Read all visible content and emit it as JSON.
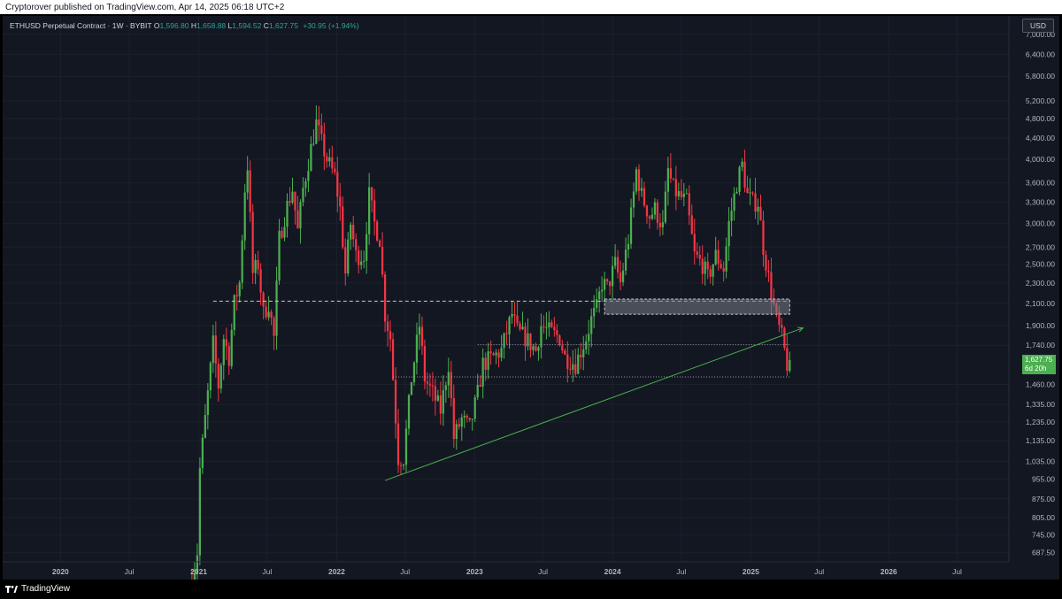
{
  "publish_line": "Cryptorover published on TradingView.com, Apr 14, 2025 06:18 UTC+2",
  "legend": {
    "symbol": "ETHUSD Perpetual Contract · 1W · BYBIT",
    "open_label": "O",
    "open": "1,596.80",
    "high_label": "H",
    "high": "1,658.88",
    "low_label": "L",
    "low": "1,594.52",
    "close_label": "C",
    "close": "1,627.75",
    "change": "+30.95 (+1.94%)"
  },
  "currency_button": "USD",
  "last_price": {
    "price": "1,627.75",
    "countdown": "6d 20h"
  },
  "footer": {
    "brand": "TradingView"
  },
  "colors": {
    "up": "#4caf50",
    "down": "#f23645",
    "background": "#131722",
    "grid": "#1c202b",
    "axis_text": "#b2b5be",
    "trendline": "#4caf50",
    "zone": "#787b86"
  },
  "chart_data": {
    "type": "candlestick",
    "symbol": "ETHUSD",
    "interval": "1W",
    "y_scale": "log",
    "y_ticks": [
      687.5,
      745,
      805,
      875,
      955,
      1035,
      1135,
      1235,
      1335,
      1460,
      1627.75,
      1740,
      1900,
      2100,
      2300,
      2500,
      2700,
      3000,
      3300,
      3600,
      4000,
      4400,
      4800,
      5200,
      5800,
      6400,
      7000
    ],
    "y_tick_labels": [
      "687.50",
      "745.00",
      "805.00",
      "875.00",
      "955.00",
      "1,035.00",
      "1,135.00",
      "1,235.00",
      "1,335.00",
      "1,460.00",
      "",
      "1,740.00",
      "1,900.00",
      "2,100.00",
      "2,300.00",
      "2,500.00",
      "2,700.00",
      "3,000.00",
      "3,300.00",
      "3,600.00",
      "4,000.00",
      "4,400.00",
      "4,800.00",
      "5,200.00",
      "5,800.00",
      "6,400.00",
      "7,000.00"
    ],
    "x_ticks": [
      "2020-01-01",
      "2020-07-01",
      "2021-01-01",
      "2021-07-01",
      "2022-01-01",
      "2022-07-01",
      "2023-01-01",
      "2023-07-01",
      "2024-01-01",
      "2024-07-01",
      "2025-01-01",
      "2025-07-01",
      "2026-01-01",
      "2026-07-01"
    ],
    "x_tick_labels": [
      "2020",
      "Jul",
      "2021",
      "Jul",
      "2022",
      "Jul",
      "2023",
      "Jul",
      "2024",
      "Jul",
      "2025",
      "Jul",
      "2026",
      "Jul"
    ],
    "x_range": [
      "2019-08-01",
      "2026-11-15"
    ],
    "y_range": [
      660,
      7600
    ],
    "weekly_close_path": [
      [
        "2020-12-14",
        600
      ],
      [
        "2020-12-28",
        690
      ],
      [
        "2021-01-04",
        1000
      ],
      [
        "2021-01-18",
        1250
      ],
      [
        "2021-02-08",
        1750
      ],
      [
        "2021-02-22",
        1450
      ],
      [
        "2021-03-08",
        1800
      ],
      [
        "2021-03-22",
        1650
      ],
      [
        "2021-04-05",
        2100
      ],
      [
        "2021-04-19",
        2300
      ],
      [
        "2021-05-03",
        3500
      ],
      [
        "2021-05-10",
        3900
      ],
      [
        "2021-05-24",
        2400
      ],
      [
        "2021-06-07",
        2500
      ],
      [
        "2021-06-21",
        2000
      ],
      [
        "2021-07-05",
        2100
      ],
      [
        "2021-07-19",
        1800
      ],
      [
        "2021-08-02",
        2800
      ],
      [
        "2021-08-23",
        3250
      ],
      [
        "2021-09-06",
        3500
      ],
      [
        "2021-09-20",
        2900
      ],
      [
        "2021-10-04",
        3500
      ],
      [
        "2021-10-25",
        4200
      ],
      [
        "2021-11-08",
        4700
      ],
      [
        "2021-11-22",
        4300
      ],
      [
        "2021-12-06",
        4000
      ],
      [
        "2021-12-27",
        3700
      ],
      [
        "2022-01-10",
        3200
      ],
      [
        "2022-01-24",
        2400
      ],
      [
        "2022-02-07",
        3000
      ],
      [
        "2022-02-21",
        2600
      ],
      [
        "2022-03-14",
        2600
      ],
      [
        "2022-03-28",
        3400
      ],
      [
        "2022-04-11",
        3000
      ],
      [
        "2022-04-25",
        2800
      ],
      [
        "2022-05-09",
        2000
      ],
      [
        "2022-05-23",
        1800
      ],
      [
        "2022-06-13",
        1050
      ],
      [
        "2022-06-27",
        1050
      ],
      [
        "2022-07-18",
        1500
      ],
      [
        "2022-08-08",
        1900
      ],
      [
        "2022-08-22",
        1500
      ],
      [
        "2022-09-12",
        1400
      ],
      [
        "2022-10-03",
        1300
      ],
      [
        "2022-10-24",
        1600
      ],
      [
        "2022-11-07",
        1150
      ],
      [
        "2022-11-28",
        1250
      ],
      [
        "2022-12-19",
        1200
      ],
      [
        "2023-01-09",
        1400
      ],
      [
        "2023-01-23",
        1600
      ],
      [
        "2023-02-20",
        1650
      ],
      [
        "2023-03-13",
        1700
      ],
      [
        "2023-04-10",
        2000
      ],
      [
        "2023-04-24",
        1850
      ],
      [
        "2023-05-15",
        1800
      ],
      [
        "2023-06-12",
        1700
      ],
      [
        "2023-06-26",
        1900
      ],
      [
        "2023-07-17",
        1850
      ],
      [
        "2023-08-14",
        1800
      ],
      [
        "2023-08-28",
        1650
      ],
      [
        "2023-09-25",
        1600
      ],
      [
        "2023-10-23",
        1800
      ],
      [
        "2023-11-06",
        1950
      ],
      [
        "2023-11-20",
        2050
      ],
      [
        "2023-12-04",
        2300
      ],
      [
        "2023-12-18",
        2250
      ],
      [
        "2024-01-08",
        2500
      ],
      [
        "2024-01-22",
        2300
      ],
      [
        "2024-02-12",
        2800
      ],
      [
        "2024-03-04",
        3800
      ],
      [
        "2024-03-18",
        3400
      ],
      [
        "2024-04-08",
        3100
      ],
      [
        "2024-04-22",
        3200
      ],
      [
        "2024-05-13",
        2950
      ],
      [
        "2024-05-27",
        3800
      ],
      [
        "2024-06-10",
        3500
      ],
      [
        "2024-06-24",
        3400
      ],
      [
        "2024-07-15",
        3300
      ],
      [
        "2024-08-05",
        2600
      ],
      [
        "2024-08-26",
        2500
      ],
      [
        "2024-09-09",
        2350
      ],
      [
        "2024-09-30",
        2600
      ],
      [
        "2024-10-21",
        2450
      ],
      [
        "2024-11-04",
        3000
      ],
      [
        "2024-11-25",
        3600
      ],
      [
        "2024-12-09",
        3900
      ],
      [
        "2024-12-23",
        3400
      ],
      [
        "2025-01-06",
        3300
      ],
      [
        "2025-01-20",
        3300
      ],
      [
        "2025-02-03",
        2700
      ],
      [
        "2025-02-24",
        2200
      ],
      [
        "2025-03-10",
        1950
      ],
      [
        "2025-03-24",
        1800
      ],
      [
        "2025-04-07",
        1597
      ],
      [
        "2025-04-14",
        1628
      ]
    ],
    "annotations": {
      "dashed_resistance": {
        "price": 2120,
        "from": "2021-02-08",
        "to": "2025-04-14"
      },
      "supply_zone": {
        "low": 2000,
        "high": 2140,
        "from": "2023-12-11",
        "to": "2025-04-14"
      },
      "dotted_level_upper": {
        "price": 1745,
        "from": "2023-01-09",
        "to": "2025-04-14"
      },
      "dotted_level_lower": {
        "price": 1510,
        "from": "2022-05-30",
        "to": "2025-04-14"
      },
      "ascending_trendline": {
        "start": [
          "2022-05-09",
          950
        ],
        "end": [
          "2025-05-19",
          1880
        ]
      }
    },
    "last_price_line": 1627.75
  }
}
